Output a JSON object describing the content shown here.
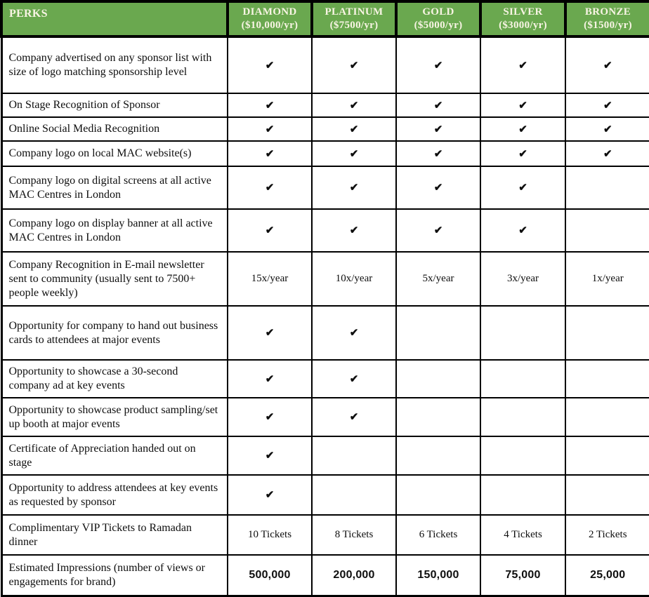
{
  "table": {
    "check_symbol": "✔",
    "columns": [
      {
        "id": "perks",
        "label": "PERKS",
        "price": ""
      },
      {
        "id": "diamond",
        "label": "DIAMOND",
        "price": "($10,000/yr)"
      },
      {
        "id": "platinum",
        "label": "PLATINUM",
        "price": "($7500/yr)"
      },
      {
        "id": "gold",
        "label": "GOLD",
        "price": "($5000/yr)"
      },
      {
        "id": "silver",
        "label": "SILVER",
        "price": "($3000/yr)"
      },
      {
        "id": "bronze",
        "label": "BRONZE",
        "price": "($1500/yr)"
      }
    ],
    "rows": [
      {
        "perk": "Company advertised on any sponsor list with size of logo matching sponsorship level",
        "values": [
          "✔",
          "✔",
          "✔",
          "✔",
          "✔"
        ]
      },
      {
        "perk": "On Stage Recognition of Sponsor",
        "values": [
          "✔",
          "✔",
          "✔",
          "✔",
          "✔"
        ]
      },
      {
        "perk": "Online Social Media Recognition",
        "values": [
          "✔",
          "✔",
          "✔",
          "✔",
          "✔"
        ]
      },
      {
        "perk": "Company logo on local MAC website(s)",
        "values": [
          "✔",
          "✔",
          "✔",
          "✔",
          "✔"
        ]
      },
      {
        "perk": "Company logo on digital screens at all active MAC Centres in London",
        "values": [
          "✔",
          "✔",
          "✔",
          "✔",
          ""
        ]
      },
      {
        "perk": "Company logo on display banner at all active MAC Centres in London",
        "values": [
          "✔",
          "✔",
          "✔",
          "✔",
          ""
        ]
      },
      {
        "perk": "Company Recognition in E-mail newsletter sent to community (usually sent to 7500+ people weekly)",
        "values": [
          "15x/year",
          "10x/year",
          "5x/year",
          "3x/year",
          "1x/year"
        ]
      },
      {
        "perk": "Opportunity for company to hand out business cards to attendees at major events",
        "values": [
          "✔",
          "✔",
          "",
          "",
          ""
        ]
      },
      {
        "perk": "Opportunity to showcase a 30-second company ad at key events",
        "values": [
          "✔",
          "✔",
          "",
          "",
          ""
        ]
      },
      {
        "perk": "Opportunity to showcase product sampling/set up booth at major events",
        "values": [
          "✔",
          "✔",
          "",
          "",
          ""
        ]
      },
      {
        "perk": "Certificate of Appreciation handed out on stage",
        "values": [
          "✔",
          "",
          "",
          "",
          ""
        ]
      },
      {
        "perk": "Opportunity to address attendees at key events as requested by sponsor",
        "values": [
          "✔",
          "",
          "",
          "",
          ""
        ]
      },
      {
        "perk": "Complimentary VIP Tickets to Ramadan dinner",
        "values": [
          "10 Tickets",
          "8 Tickets",
          "6 Tickets",
          "4 Tickets",
          "2 Tickets"
        ]
      },
      {
        "perk": "Estimated Impressions (number of views or engagements for brand)",
        "values": [
          "500,000",
          "200,000",
          "150,000",
          "75,000",
          "25,000"
        ],
        "emphasis": true
      }
    ],
    "colors": {
      "header_bg": "#6aa84f",
      "header_text": "#f8f4e4",
      "border": "#000000",
      "body_text": "#0e0e0e"
    }
  }
}
